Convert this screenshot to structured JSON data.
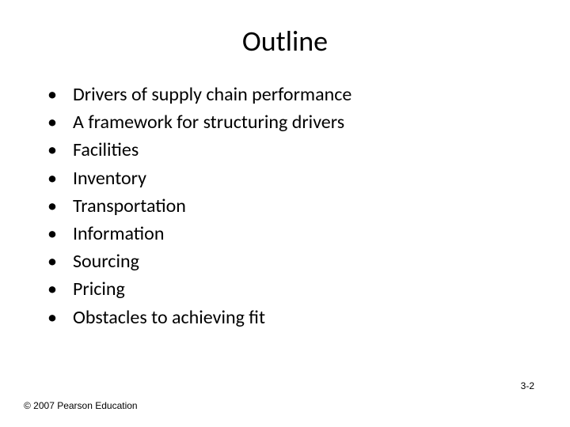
{
  "slide": {
    "title": "Outline",
    "title_fontsize": 36,
    "title_color": "#000000",
    "background_color": "#ffffff",
    "bullets": [
      "Drivers of supply chain performance",
      "A framework for structuring drivers",
      "Facilities",
      "Inventory",
      "Transportation",
      "Information",
      "Sourcing",
      "Pricing",
      "Obstacles to achieving fit"
    ],
    "bullet_fontsize": 24,
    "bullet_color": "#000000",
    "bullet_marker": "•",
    "footer": {
      "copyright": "© 2007 Pearson Education",
      "page_number": "3-2",
      "fontsize": 12,
      "color": "#000000"
    }
  }
}
